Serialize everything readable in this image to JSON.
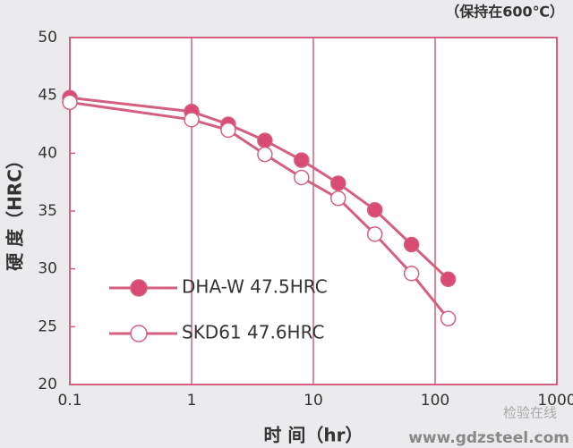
{
  "chart_data": {
    "type": "line",
    "annotation": "（保持在600℃）",
    "xlabel": "时  间（hr）",
    "ylabel": "硬  度（HRC）",
    "x": [
      0.1,
      1,
      2,
      4,
      8,
      16,
      32,
      64,
      128
    ],
    "series": [
      {
        "name": "DHA-W 47.5HRC",
        "color": "#d94b72",
        "values": [
          44.8,
          43.6,
          42.5,
          41.1,
          39.4,
          37.4,
          35.1,
          32.1,
          29.1
        ]
      },
      {
        "name": "SKD61  47.6HRC",
        "color": "#ffffff",
        "values": [
          44.4,
          42.9,
          42.0,
          39.9,
          37.9,
          36.1,
          33.0,
          29.6,
          25.7
        ]
      }
    ],
    "line_color": "#d4607f",
    "xscale": "log",
    "grid": "x",
    "legend": "center left",
    "xlim": [
      0.1,
      1000
    ],
    "xticks": [
      0.1,
      1,
      10,
      100,
      1000
    ],
    "ylim": [
      20,
      50
    ],
    "yticks": [
      20,
      25,
      30,
      35,
      40,
      45,
      50
    ]
  },
  "watermark": {
    "account": "检验在线",
    "site": "www.gdzsteel.com"
  }
}
